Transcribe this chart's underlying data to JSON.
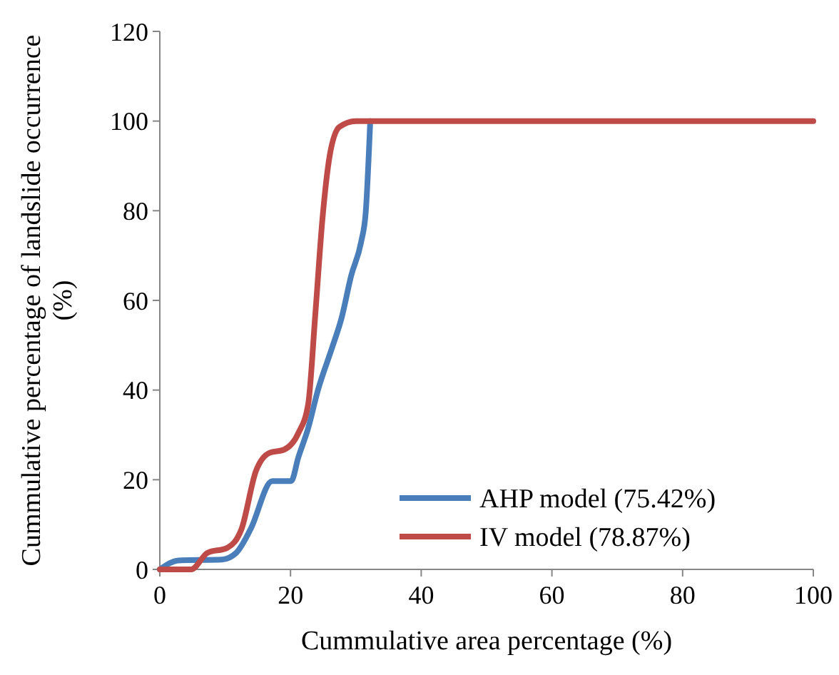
{
  "chart_data": {
    "type": "line",
    "xlabel": "Cummulative area percentage (%)",
    "ylabel": "Cummulative percentage of landslide occurrence (%)",
    "xlim": [
      0,
      100
    ],
    "xticks": [
      0,
      20,
      40,
      60,
      80,
      100
    ],
    "ylim": [
      0,
      120
    ],
    "yticks": [
      0,
      20,
      40,
      60,
      80,
      100,
      120
    ],
    "grid": false,
    "legend": "bottom right",
    "marker": "none",
    "line_style": "solid",
    "series": [
      {
        "name": "AHP model (75.42%)",
        "color": "#4a7ebb",
        "x": [
          0,
          2.9,
          9.5,
          11.7,
          13.9,
          17.2,
          20.1,
          21.2,
          22.7,
          24.2,
          26.4,
          27.8,
          29.3,
          30.8,
          31.5,
          32.2
        ],
        "values": [
          0,
          2,
          2.2,
          3.7,
          9,
          19.7,
          19.7,
          25,
          31.5,
          40,
          49.6,
          56,
          65.6,
          73,
          79.5,
          100
        ]
      },
      {
        "name": "IV model (78.87%)",
        "color": "#be4b48",
        "x": [
          0,
          4.8,
          7.3,
          10.3,
          12.5,
          14.7,
          16.8,
          19,
          21.2,
          22.7,
          23.8,
          24.9,
          26,
          27.5,
          30,
          40,
          100
        ],
        "values": [
          0,
          0,
          3.7,
          4.8,
          9,
          21.9,
          26,
          26.7,
          30.4,
          36.8,
          57,
          78.4,
          92.3,
          98.7,
          100,
          100,
          100
        ]
      }
    ]
  }
}
